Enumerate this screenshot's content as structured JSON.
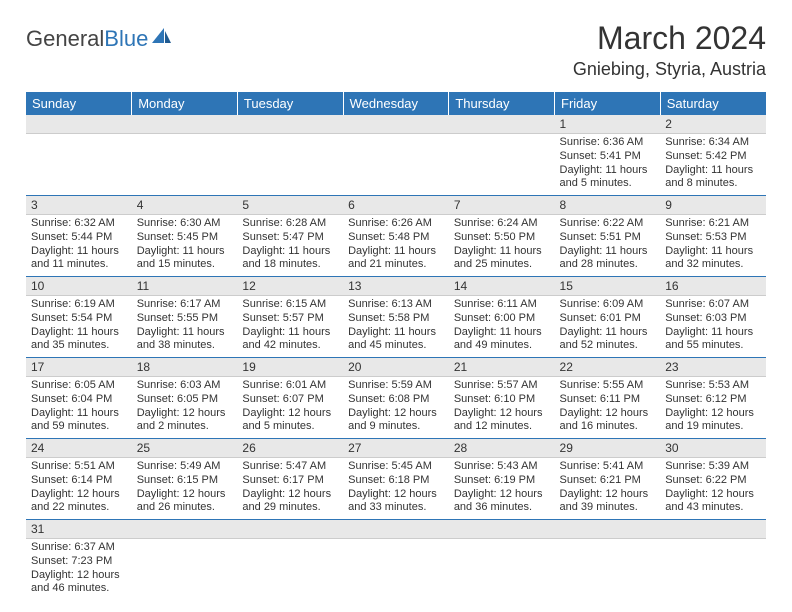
{
  "logo": {
    "part1": "General",
    "part2": "Blue"
  },
  "header": {
    "month_title": "March 2024",
    "location": "Gniebing, Styria, Austria"
  },
  "colors": {
    "header_bar": "#2e75b6",
    "daynum_bg": "#e8e8e8",
    "row_border": "#2e75b6",
    "text": "#333333",
    "bg": "#ffffff"
  },
  "day_headers": [
    "Sunday",
    "Monday",
    "Tuesday",
    "Wednesday",
    "Thursday",
    "Friday",
    "Saturday"
  ],
  "weeks": [
    [
      null,
      null,
      null,
      null,
      null,
      {
        "n": "1",
        "sr": "6:36 AM",
        "ss": "5:41 PM",
        "dh": "11",
        "dm": "5"
      },
      {
        "n": "2",
        "sr": "6:34 AM",
        "ss": "5:42 PM",
        "dh": "11",
        "dm": "8"
      }
    ],
    [
      {
        "n": "3",
        "sr": "6:32 AM",
        "ss": "5:44 PM",
        "dh": "11",
        "dm": "11"
      },
      {
        "n": "4",
        "sr": "6:30 AM",
        "ss": "5:45 PM",
        "dh": "11",
        "dm": "15"
      },
      {
        "n": "5",
        "sr": "6:28 AM",
        "ss": "5:47 PM",
        "dh": "11",
        "dm": "18"
      },
      {
        "n": "6",
        "sr": "6:26 AM",
        "ss": "5:48 PM",
        "dh": "11",
        "dm": "21"
      },
      {
        "n": "7",
        "sr": "6:24 AM",
        "ss": "5:50 PM",
        "dh": "11",
        "dm": "25"
      },
      {
        "n": "8",
        "sr": "6:22 AM",
        "ss": "5:51 PM",
        "dh": "11",
        "dm": "28"
      },
      {
        "n": "9",
        "sr": "6:21 AM",
        "ss": "5:53 PM",
        "dh": "11",
        "dm": "32"
      }
    ],
    [
      {
        "n": "10",
        "sr": "6:19 AM",
        "ss": "5:54 PM",
        "dh": "11",
        "dm": "35"
      },
      {
        "n": "11",
        "sr": "6:17 AM",
        "ss": "5:55 PM",
        "dh": "11",
        "dm": "38"
      },
      {
        "n": "12",
        "sr": "6:15 AM",
        "ss": "5:57 PM",
        "dh": "11",
        "dm": "42"
      },
      {
        "n": "13",
        "sr": "6:13 AM",
        "ss": "5:58 PM",
        "dh": "11",
        "dm": "45"
      },
      {
        "n": "14",
        "sr": "6:11 AM",
        "ss": "6:00 PM",
        "dh": "11",
        "dm": "49"
      },
      {
        "n": "15",
        "sr": "6:09 AM",
        "ss": "6:01 PM",
        "dh": "11",
        "dm": "52"
      },
      {
        "n": "16",
        "sr": "6:07 AM",
        "ss": "6:03 PM",
        "dh": "11",
        "dm": "55"
      }
    ],
    [
      {
        "n": "17",
        "sr": "6:05 AM",
        "ss": "6:04 PM",
        "dh": "11",
        "dm": "59"
      },
      {
        "n": "18",
        "sr": "6:03 AM",
        "ss": "6:05 PM",
        "dh": "12",
        "dm": "2"
      },
      {
        "n": "19",
        "sr": "6:01 AM",
        "ss": "6:07 PM",
        "dh": "12",
        "dm": "5"
      },
      {
        "n": "20",
        "sr": "5:59 AM",
        "ss": "6:08 PM",
        "dh": "12",
        "dm": "9"
      },
      {
        "n": "21",
        "sr": "5:57 AM",
        "ss": "6:10 PM",
        "dh": "12",
        "dm": "12"
      },
      {
        "n": "22",
        "sr": "5:55 AM",
        "ss": "6:11 PM",
        "dh": "12",
        "dm": "16"
      },
      {
        "n": "23",
        "sr": "5:53 AM",
        "ss": "6:12 PM",
        "dh": "12",
        "dm": "19"
      }
    ],
    [
      {
        "n": "24",
        "sr": "5:51 AM",
        "ss": "6:14 PM",
        "dh": "12",
        "dm": "22"
      },
      {
        "n": "25",
        "sr": "5:49 AM",
        "ss": "6:15 PM",
        "dh": "12",
        "dm": "26"
      },
      {
        "n": "26",
        "sr": "5:47 AM",
        "ss": "6:17 PM",
        "dh": "12",
        "dm": "29"
      },
      {
        "n": "27",
        "sr": "5:45 AM",
        "ss": "6:18 PM",
        "dh": "12",
        "dm": "33"
      },
      {
        "n": "28",
        "sr": "5:43 AM",
        "ss": "6:19 PM",
        "dh": "12",
        "dm": "36"
      },
      {
        "n": "29",
        "sr": "5:41 AM",
        "ss": "6:21 PM",
        "dh": "12",
        "dm": "39"
      },
      {
        "n": "30",
        "sr": "5:39 AM",
        "ss": "6:22 PM",
        "dh": "12",
        "dm": "43"
      }
    ],
    [
      {
        "n": "31",
        "sr": "6:37 AM",
        "ss": "7:23 PM",
        "dh": "12",
        "dm": "46"
      },
      null,
      null,
      null,
      null,
      null,
      null
    ]
  ],
  "labels": {
    "sunrise": "Sunrise:",
    "sunset": "Sunset:",
    "daylight": "Daylight:",
    "hours": "hours",
    "and": "and",
    "minutes": "minutes."
  }
}
